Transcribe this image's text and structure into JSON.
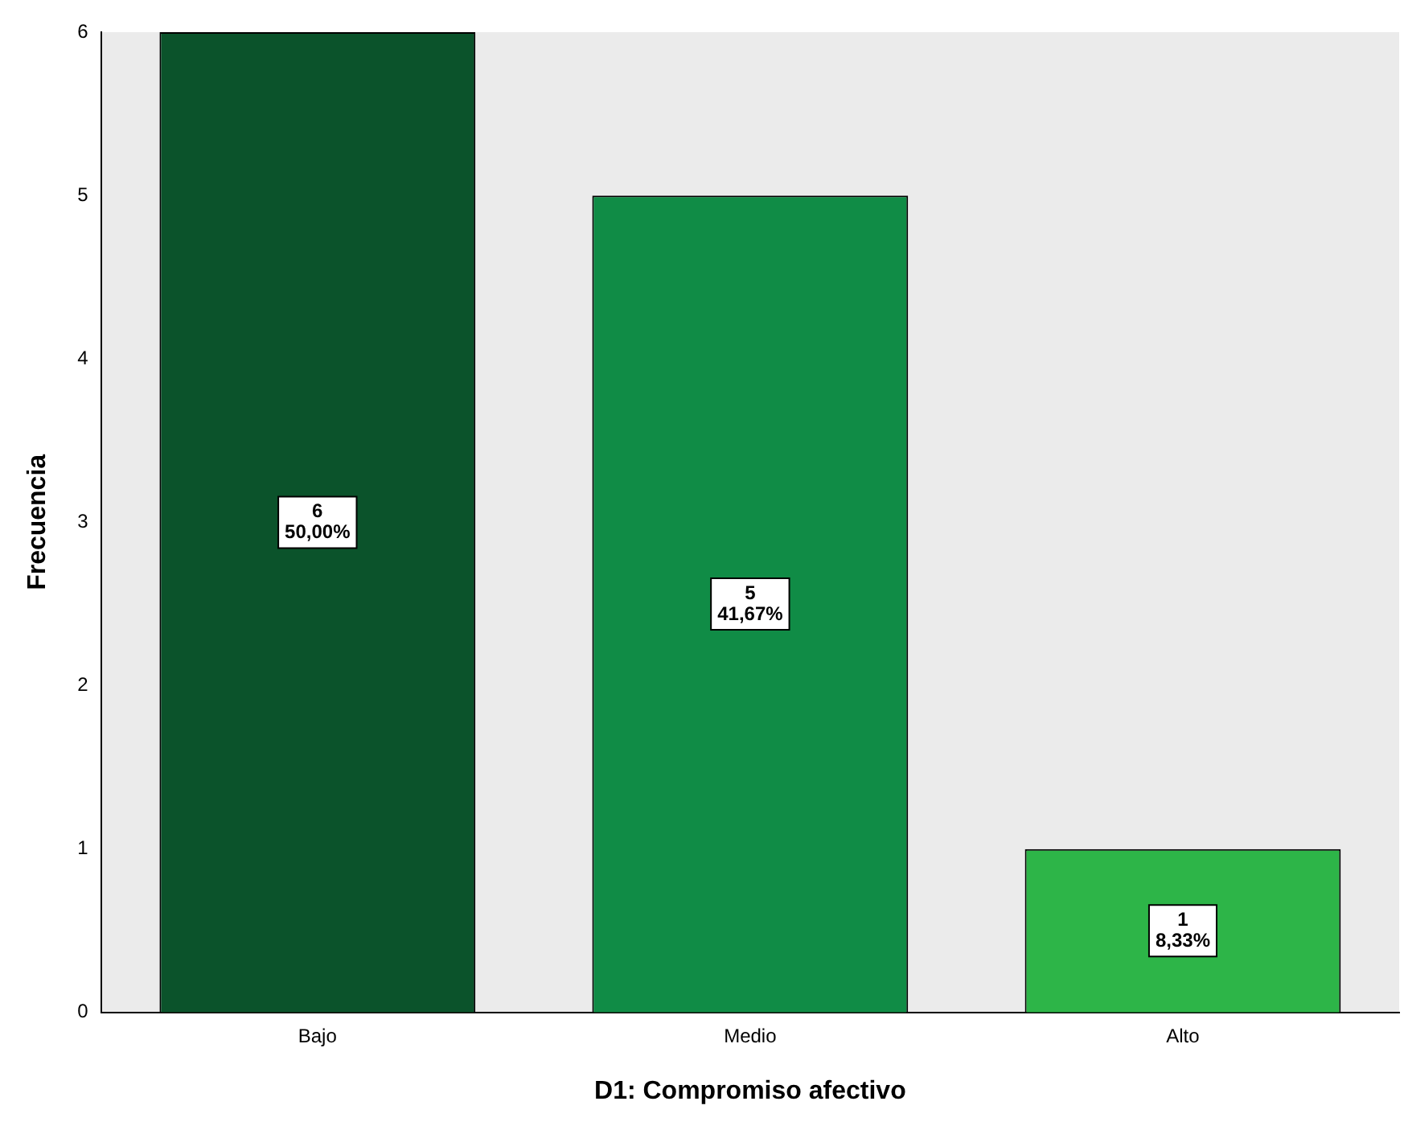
{
  "chart_data": {
    "type": "bar",
    "xlabel": "D1: Compromiso afectivo",
    "ylabel": "Frecuencia",
    "categories": [
      "Bajo",
      "Medio",
      "Alto"
    ],
    "values": [
      6,
      5,
      1
    ],
    "colors": [
      "#0b532b",
      "#108c46",
      "#2db548"
    ],
    "value_labels": [
      "6\n50,00%",
      "5\n41,67%",
      "1\n8,33%"
    ],
    "ylim": [
      0,
      6
    ],
    "yticks": [
      0,
      1,
      2,
      3,
      4,
      5,
      6
    ],
    "grid": false,
    "legend": false
  }
}
